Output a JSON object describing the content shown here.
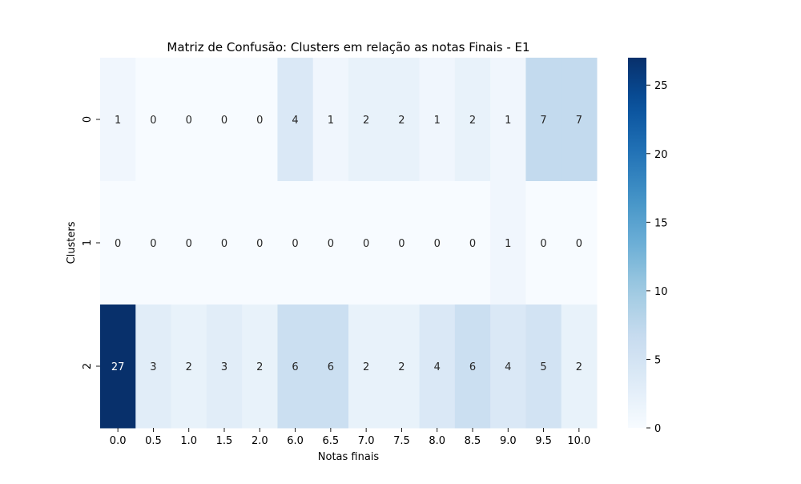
{
  "chart_data": {
    "type": "heatmap",
    "title": "Matriz de Confusão: Clusters em relação as notas Finais - E1",
    "xlabel": "Notas finais",
    "ylabel": "Clusters",
    "x_categories": [
      "0.0",
      "0.5",
      "1.0",
      "1.5",
      "2.0",
      "6.0",
      "6.5",
      "7.0",
      "7.5",
      "8.0",
      "8.5",
      "9.0",
      "9.5",
      "10.0"
    ],
    "y_categories": [
      "0",
      "1",
      "2"
    ],
    "values": [
      [
        1,
        0,
        0,
        0,
        0,
        4,
        1,
        2,
        2,
        1,
        2,
        1,
        7,
        7
      ],
      [
        0,
        0,
        0,
        0,
        0,
        0,
        0,
        0,
        0,
        0,
        0,
        1,
        0,
        0
      ],
      [
        27,
        3,
        2,
        3,
        2,
        6,
        6,
        2,
        2,
        4,
        6,
        4,
        5,
        2
      ]
    ],
    "colormap": "Blues",
    "vmin": 0,
    "vmax": 27,
    "colorbar_ticks": [
      0,
      5,
      10,
      15,
      20,
      25
    ]
  }
}
